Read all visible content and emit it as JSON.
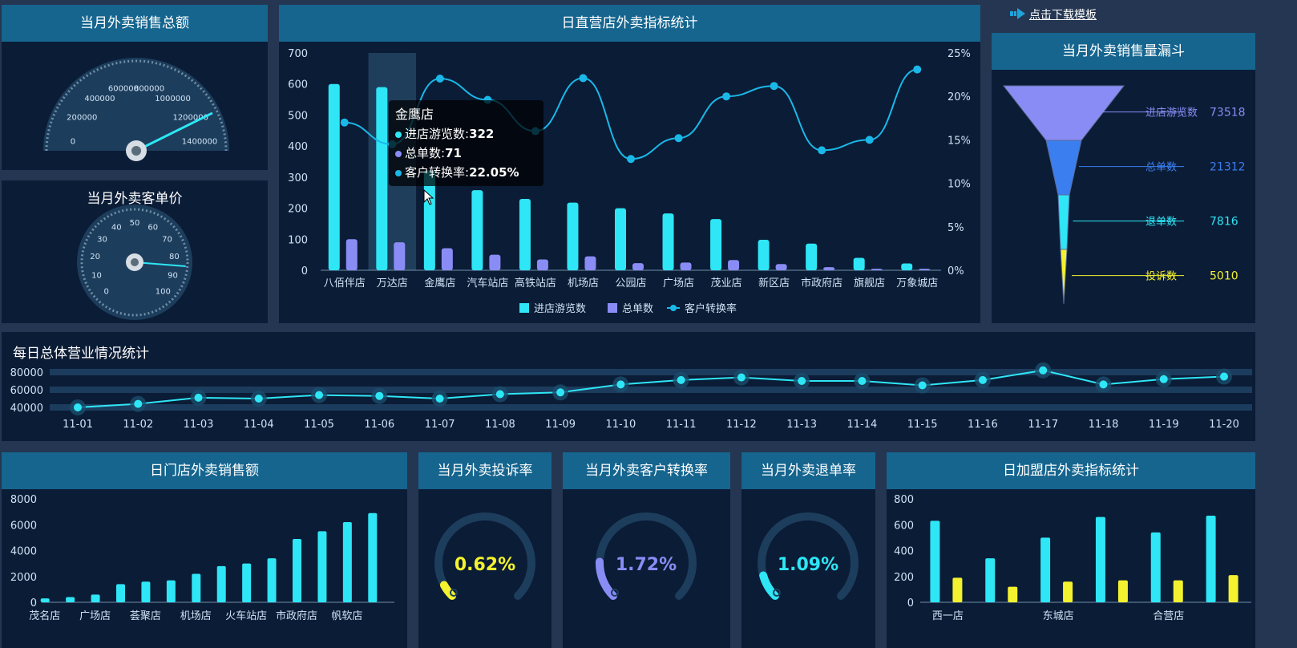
{
  "top_link": {
    "label": "点击下载模板"
  },
  "panels": {
    "total_sales_title": "当月外卖销售总额",
    "avg_price_title": "当月外卖客单价",
    "direct_title": "日直营店外卖指标统计",
    "funnel_title": "当月外卖销售量漏斗",
    "daily_title": "每日总体营业情况统计",
    "store_sales_title": "日门店外卖销售额",
    "complaint_title": "当月外卖投诉率",
    "conversion_title": "当月外卖客户转换率",
    "refund_title": "当月外卖退单率",
    "franchise_title": "日加盟店外卖指标统计"
  },
  "gauge_sales": {
    "ticks": [
      "0",
      "200000",
      "400000",
      "600000",
      "800000",
      "1000000",
      "1200000",
      "1400000"
    ],
    "min": 0,
    "max": 1400000,
    "value": 1250000
  },
  "gauge_price": {
    "ticks": [
      "0",
      "10",
      "20",
      "30",
      "40",
      "50",
      "60",
      "70",
      "80",
      "90",
      "100"
    ],
    "min": 0,
    "max": 100,
    "value": 85
  },
  "tooltip": {
    "title": "金鹰店",
    "row1_label": "进店游览数:",
    "row1_value": "322",
    "row2_label": "总单数:",
    "row2_value": "71",
    "row3_label": "客户转换率:",
    "row3_value": "22.05%"
  },
  "chart_data": [
    {
      "type": "bar",
      "title": "日直营店外卖指标统计",
      "categories": [
        "八佰伴店",
        "万达店",
        "金鹰店",
        "汽车站店",
        "高铁站店",
        "机场店",
        "公园店",
        "广场店",
        "茂业店",
        "新区店",
        "市政府店",
        "旗舰店",
        "万象城店"
      ],
      "series": [
        {
          "name": "进店游览数",
          "type": "bar",
          "values": [
            600,
            590,
            322,
            258,
            230,
            218,
            200,
            183,
            165,
            98,
            86,
            40,
            22
          ],
          "color": "#2ee6f5"
        },
        {
          "name": "总单数",
          "type": "bar",
          "values": [
            100,
            90,
            71,
            50,
            35,
            45,
            23,
            25,
            33,
            20,
            10,
            5,
            5
          ],
          "color": "#8a8cf5"
        },
        {
          "name": "客户转换率",
          "type": "line",
          "axis": "right",
          "values": [
            17,
            14.5,
            22.05,
            19.6,
            16,
            22.1,
            12.8,
            15.2,
            20,
            21.2,
            13.8,
            15,
            23.1
          ],
          "color": "#1ab8e8"
        }
      ],
      "ylim": [
        0,
        700
      ],
      "yticks": [
        "700",
        "600",
        "500",
        "400",
        "300",
        "200",
        "100",
        "0"
      ],
      "y2lim": [
        0,
        25
      ],
      "y2ticks": [
        "25%",
        "20%",
        "15%",
        "10%",
        "5%",
        "0%"
      ],
      "legend": "bottom",
      "highlight_index": 1
    },
    {
      "type": "funnel",
      "title": "当月外卖销售量漏斗",
      "categories": [
        "进店游览数",
        "总单数",
        "退单数",
        "投诉数"
      ],
      "values": [
        73518,
        21312,
        7816,
        5010
      ],
      "value_labels": [
        "73518",
        "21312",
        "7816",
        "5010"
      ],
      "colors": [
        "#8a8cf5",
        "#3b7ef0",
        "#2ee6f5",
        "#f4f22e"
      ]
    },
    {
      "type": "line",
      "title": "每日总体营业情况统计",
      "categories": [
        "11-01",
        "11-02",
        "11-03",
        "11-04",
        "11-05",
        "11-06",
        "11-07",
        "11-08",
        "11-09",
        "11-10",
        "11-11",
        "11-12",
        "11-13",
        "11-14",
        "11-15",
        "11-16",
        "11-17",
        "11-18",
        "11-19",
        "11-20"
      ],
      "values": [
        40000,
        44000,
        51000,
        50000,
        54000,
        53000,
        50000,
        55000,
        57000,
        66000,
        71000,
        74000,
        70000,
        70000,
        65000,
        71000,
        82000,
        66000,
        72000,
        75000
      ],
      "ylim": [
        30000,
        90000
      ],
      "yticks": [
        "80000",
        "60000",
        "40000"
      ],
      "color": "#2ee6f5"
    },
    {
      "type": "bar",
      "title": "日门店外卖销售额",
      "categories": [
        "茂名店",
        "",
        "广场店",
        "",
        "荟聚店",
        "",
        "机场店",
        "",
        "火车站店",
        "",
        "市政府店",
        "",
        "帆软店",
        ""
      ],
      "x_labels": [
        "茂名店",
        "广场店",
        "荟聚店",
        "机场店",
        "火车站店",
        "市政府店",
        "帆软店"
      ],
      "values": [
        300,
        400,
        600,
        1400,
        1600,
        1700,
        2200,
        2800,
        3000,
        3400,
        4900,
        5500,
        6200,
        6900
      ],
      "ylim": [
        0,
        8000
      ],
      "yticks": [
        "8000",
        "6000",
        "4000",
        "2000",
        "0"
      ],
      "color": "#2ee6f5"
    },
    {
      "type": "gauge",
      "title": "当月外卖投诉率",
      "value": 0.62,
      "value_label": "0.62%",
      "color": "#f4f22e"
    },
    {
      "type": "gauge",
      "title": "当月外卖客户转换率",
      "value": 1.72,
      "value_label": "1.72%",
      "color": "#8a8cf5"
    },
    {
      "type": "gauge",
      "title": "当月外卖退单率",
      "value": 1.09,
      "value_label": "1.09%",
      "color": "#2ee6f5"
    },
    {
      "type": "bar",
      "title": "日加盟店外卖指标统计",
      "x_labels": [
        "西一店",
        "东城店",
        "合营店"
      ],
      "series": [
        {
          "values": [
            630,
            340,
            500,
            660,
            540,
            670
          ],
          "color": "#2ee6f5"
        },
        {
          "values": [
            190,
            120,
            160,
            170,
            170,
            210
          ],
          "color": "#f4f22e"
        }
      ],
      "ylim": [
        0,
        800
      ],
      "yticks": [
        "800",
        "600",
        "400",
        "200",
        "0"
      ]
    }
  ],
  "legend_direct": [
    "进店游览数",
    "总单数",
    "客户转换率"
  ],
  "colors": {
    "panel_bg": "#0b1c36",
    "title_bg": "#15658f",
    "cyan": "#2ee6f5",
    "purple": "#8a8cf5",
    "yellow": "#f4f22e",
    "blue": "#3b7ef0"
  }
}
